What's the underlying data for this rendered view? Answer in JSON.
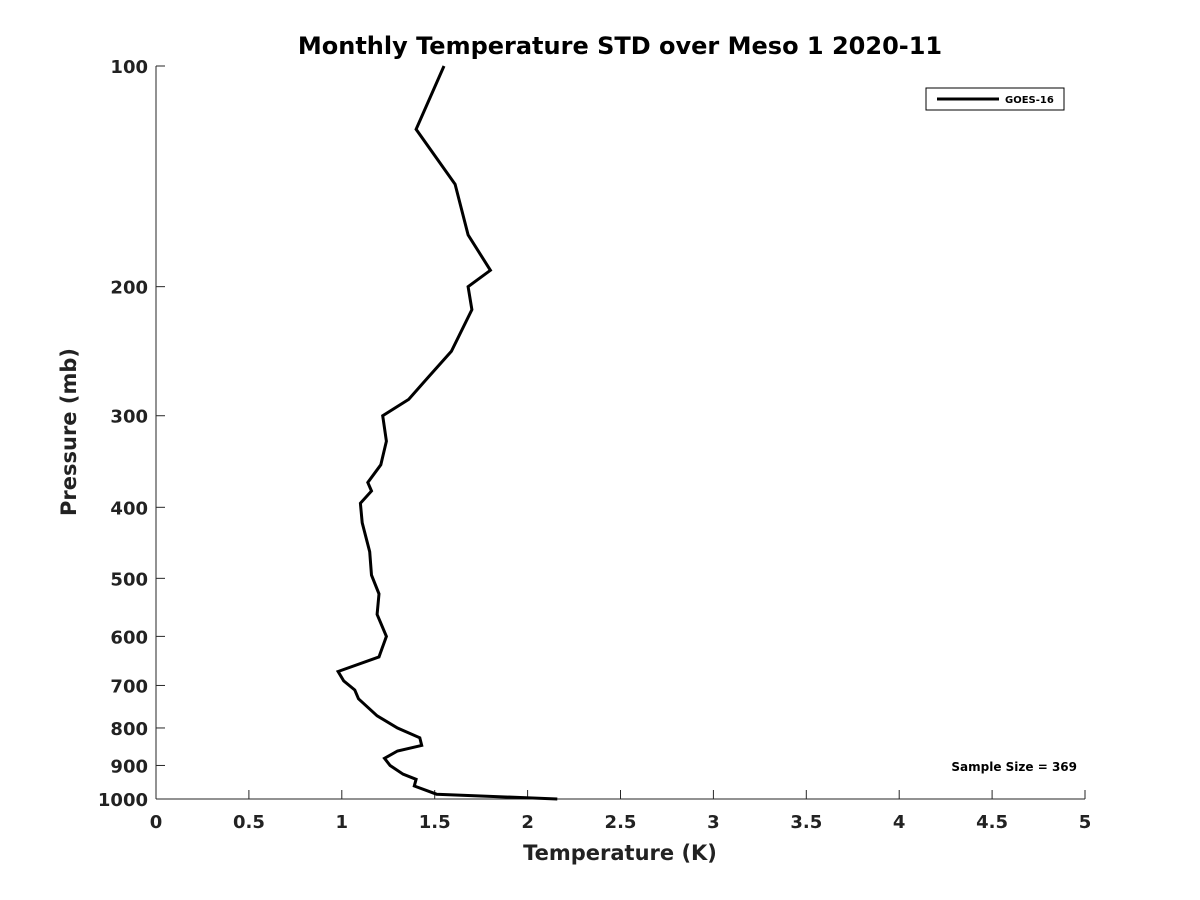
{
  "chart_data": {
    "type": "line",
    "title": "Monthly Temperature STD over Meso 1  2020-11",
    "xlabel": "Temperature (K)",
    "ylabel": "Pressure (mb)",
    "xlim": [
      0,
      5
    ],
    "ylim": [
      1000,
      100
    ],
    "yscale": "log",
    "y_reversed": true,
    "grid": false,
    "legend_position": "top-right",
    "xticks": [
      0,
      0.5,
      1,
      1.5,
      2,
      2.5,
      3,
      3.5,
      4,
      4.5,
      5
    ],
    "xtick_labels": [
      "0",
      "0.5",
      "1",
      "1.5",
      "2",
      "2.5",
      "3",
      "3.5",
      "4",
      "4.5",
      "5"
    ],
    "yticks": [
      100,
      200,
      300,
      400,
      500,
      600,
      700,
      800,
      900,
      1000
    ],
    "ytick_labels": [
      "100",
      "200",
      "300",
      "400",
      "500",
      "600",
      "700",
      "800",
      "900",
      "1000"
    ],
    "annotation": "Sample Size = 369",
    "series": [
      {
        "name": "GOES-16",
        "color": "#000000",
        "x": [
          1.55,
          1.4,
          1.61,
          1.68,
          1.8,
          1.68,
          1.7,
          1.59,
          1.47,
          1.36,
          1.22,
          1.24,
          1.21,
          1.14,
          1.16,
          1.1,
          1.11,
          1.15,
          1.16,
          1.2,
          1.19,
          1.24,
          1.2,
          0.98,
          1.01,
          1.07,
          1.09,
          1.19,
          1.3,
          1.42,
          1.43,
          1.3,
          1.23,
          1.26,
          1.33,
          1.4,
          1.39,
          1.51,
          2.16
        ],
        "y": [
          100,
          122,
          145,
          170,
          190,
          200,
          215,
          245,
          265,
          285,
          300,
          325,
          350,
          370,
          380,
          395,
          420,
          460,
          495,
          525,
          560,
          600,
          640,
          670,
          690,
          710,
          730,
          770,
          800,
          825,
          845,
          860,
          880,
          900,
          925,
          940,
          960,
          985,
          1000
        ]
      }
    ]
  }
}
